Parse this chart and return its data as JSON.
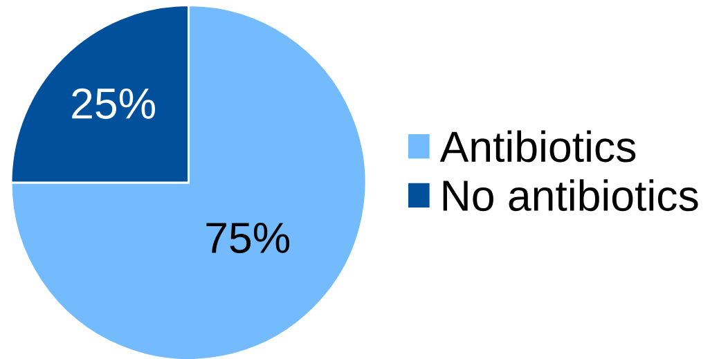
{
  "chart_data": {
    "type": "pie",
    "categories": [
      "Antibiotics",
      "No antibiotics"
    ],
    "values": [
      75,
      25
    ],
    "colors": [
      "#74bbfd",
      "#00509b"
    ],
    "value_labels": [
      "75%",
      "25%"
    ],
    "legend": "right"
  }
}
